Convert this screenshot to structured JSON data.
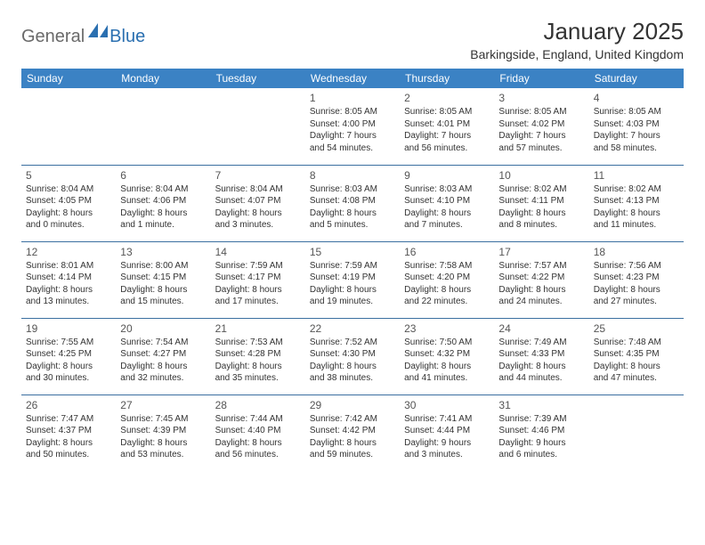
{
  "logo": {
    "text1": "General",
    "text2": "Blue"
  },
  "title": "January 2025",
  "location": "Barkingside, England, United Kingdom",
  "colors": {
    "header_bg": "#3b82c4",
    "header_text": "#ffffff",
    "row_border": "#3b6fa0",
    "logo_gray": "#6a6a6a",
    "logo_blue": "#2a6fb0",
    "body_text": "#333333",
    "daynum_text": "#555555"
  },
  "typography": {
    "title_fontsize": 26,
    "location_fontsize": 14,
    "dayheader_fontsize": 12,
    "daynum_fontsize": 12,
    "cell_fontsize": 10
  },
  "weekdays": [
    "Sunday",
    "Monday",
    "Tuesday",
    "Wednesday",
    "Thursday",
    "Friday",
    "Saturday"
  ],
  "weeks": [
    [
      null,
      null,
      null,
      {
        "n": "1",
        "sr": "Sunrise: 8:05 AM",
        "ss": "Sunset: 4:00 PM",
        "d1": "Daylight: 7 hours",
        "d2": "and 54 minutes."
      },
      {
        "n": "2",
        "sr": "Sunrise: 8:05 AM",
        "ss": "Sunset: 4:01 PM",
        "d1": "Daylight: 7 hours",
        "d2": "and 56 minutes."
      },
      {
        "n": "3",
        "sr": "Sunrise: 8:05 AM",
        "ss": "Sunset: 4:02 PM",
        "d1": "Daylight: 7 hours",
        "d2": "and 57 minutes."
      },
      {
        "n": "4",
        "sr": "Sunrise: 8:05 AM",
        "ss": "Sunset: 4:03 PM",
        "d1": "Daylight: 7 hours",
        "d2": "and 58 minutes."
      }
    ],
    [
      {
        "n": "5",
        "sr": "Sunrise: 8:04 AM",
        "ss": "Sunset: 4:05 PM",
        "d1": "Daylight: 8 hours",
        "d2": "and 0 minutes."
      },
      {
        "n": "6",
        "sr": "Sunrise: 8:04 AM",
        "ss": "Sunset: 4:06 PM",
        "d1": "Daylight: 8 hours",
        "d2": "and 1 minute."
      },
      {
        "n": "7",
        "sr": "Sunrise: 8:04 AM",
        "ss": "Sunset: 4:07 PM",
        "d1": "Daylight: 8 hours",
        "d2": "and 3 minutes."
      },
      {
        "n": "8",
        "sr": "Sunrise: 8:03 AM",
        "ss": "Sunset: 4:08 PM",
        "d1": "Daylight: 8 hours",
        "d2": "and 5 minutes."
      },
      {
        "n": "9",
        "sr": "Sunrise: 8:03 AM",
        "ss": "Sunset: 4:10 PM",
        "d1": "Daylight: 8 hours",
        "d2": "and 7 minutes."
      },
      {
        "n": "10",
        "sr": "Sunrise: 8:02 AM",
        "ss": "Sunset: 4:11 PM",
        "d1": "Daylight: 8 hours",
        "d2": "and 8 minutes."
      },
      {
        "n": "11",
        "sr": "Sunrise: 8:02 AM",
        "ss": "Sunset: 4:13 PM",
        "d1": "Daylight: 8 hours",
        "d2": "and 11 minutes."
      }
    ],
    [
      {
        "n": "12",
        "sr": "Sunrise: 8:01 AM",
        "ss": "Sunset: 4:14 PM",
        "d1": "Daylight: 8 hours",
        "d2": "and 13 minutes."
      },
      {
        "n": "13",
        "sr": "Sunrise: 8:00 AM",
        "ss": "Sunset: 4:15 PM",
        "d1": "Daylight: 8 hours",
        "d2": "and 15 minutes."
      },
      {
        "n": "14",
        "sr": "Sunrise: 7:59 AM",
        "ss": "Sunset: 4:17 PM",
        "d1": "Daylight: 8 hours",
        "d2": "and 17 minutes."
      },
      {
        "n": "15",
        "sr": "Sunrise: 7:59 AM",
        "ss": "Sunset: 4:19 PM",
        "d1": "Daylight: 8 hours",
        "d2": "and 19 minutes."
      },
      {
        "n": "16",
        "sr": "Sunrise: 7:58 AM",
        "ss": "Sunset: 4:20 PM",
        "d1": "Daylight: 8 hours",
        "d2": "and 22 minutes."
      },
      {
        "n": "17",
        "sr": "Sunrise: 7:57 AM",
        "ss": "Sunset: 4:22 PM",
        "d1": "Daylight: 8 hours",
        "d2": "and 24 minutes."
      },
      {
        "n": "18",
        "sr": "Sunrise: 7:56 AM",
        "ss": "Sunset: 4:23 PM",
        "d1": "Daylight: 8 hours",
        "d2": "and 27 minutes."
      }
    ],
    [
      {
        "n": "19",
        "sr": "Sunrise: 7:55 AM",
        "ss": "Sunset: 4:25 PM",
        "d1": "Daylight: 8 hours",
        "d2": "and 30 minutes."
      },
      {
        "n": "20",
        "sr": "Sunrise: 7:54 AM",
        "ss": "Sunset: 4:27 PM",
        "d1": "Daylight: 8 hours",
        "d2": "and 32 minutes."
      },
      {
        "n": "21",
        "sr": "Sunrise: 7:53 AM",
        "ss": "Sunset: 4:28 PM",
        "d1": "Daylight: 8 hours",
        "d2": "and 35 minutes."
      },
      {
        "n": "22",
        "sr": "Sunrise: 7:52 AM",
        "ss": "Sunset: 4:30 PM",
        "d1": "Daylight: 8 hours",
        "d2": "and 38 minutes."
      },
      {
        "n": "23",
        "sr": "Sunrise: 7:50 AM",
        "ss": "Sunset: 4:32 PM",
        "d1": "Daylight: 8 hours",
        "d2": "and 41 minutes."
      },
      {
        "n": "24",
        "sr": "Sunrise: 7:49 AM",
        "ss": "Sunset: 4:33 PM",
        "d1": "Daylight: 8 hours",
        "d2": "and 44 minutes."
      },
      {
        "n": "25",
        "sr": "Sunrise: 7:48 AM",
        "ss": "Sunset: 4:35 PM",
        "d1": "Daylight: 8 hours",
        "d2": "and 47 minutes."
      }
    ],
    [
      {
        "n": "26",
        "sr": "Sunrise: 7:47 AM",
        "ss": "Sunset: 4:37 PM",
        "d1": "Daylight: 8 hours",
        "d2": "and 50 minutes."
      },
      {
        "n": "27",
        "sr": "Sunrise: 7:45 AM",
        "ss": "Sunset: 4:39 PM",
        "d1": "Daylight: 8 hours",
        "d2": "and 53 minutes."
      },
      {
        "n": "28",
        "sr": "Sunrise: 7:44 AM",
        "ss": "Sunset: 4:40 PM",
        "d1": "Daylight: 8 hours",
        "d2": "and 56 minutes."
      },
      {
        "n": "29",
        "sr": "Sunrise: 7:42 AM",
        "ss": "Sunset: 4:42 PM",
        "d1": "Daylight: 8 hours",
        "d2": "and 59 minutes."
      },
      {
        "n": "30",
        "sr": "Sunrise: 7:41 AM",
        "ss": "Sunset: 4:44 PM",
        "d1": "Daylight: 9 hours",
        "d2": "and 3 minutes."
      },
      {
        "n": "31",
        "sr": "Sunrise: 7:39 AM",
        "ss": "Sunset: 4:46 PM",
        "d1": "Daylight: 9 hours",
        "d2": "and 6 minutes."
      },
      null
    ]
  ]
}
